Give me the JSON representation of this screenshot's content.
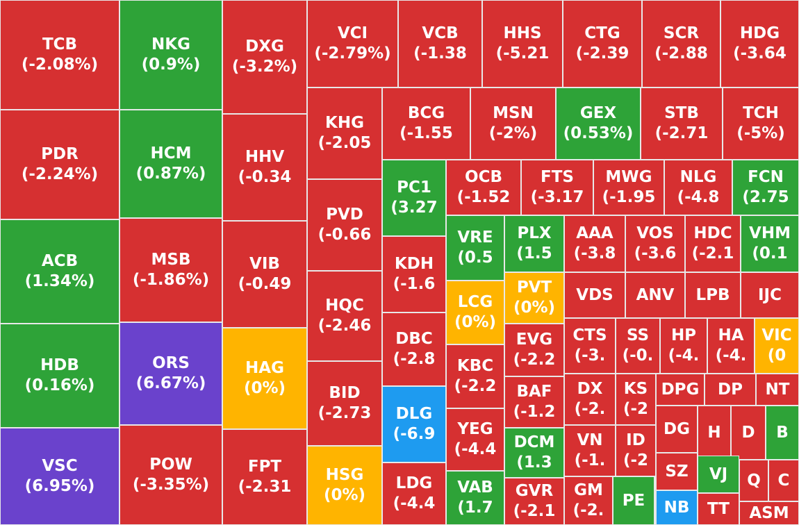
{
  "colors": {
    "down": "#d63031",
    "up": "#2ea338",
    "flat": "#ffb400",
    "ceiling": "#6a42cc",
    "floor": "#1e9bf0",
    "border": "#e8e8e8",
    "text": "#ffffff"
  },
  "chart_data": {
    "type": "treemap",
    "title": "",
    "cells": [
      {
        "ticker": "TCB",
        "change": "(-2.08%)",
        "state": "down"
      },
      {
        "ticker": "PDR",
        "change": "(-2.24%)",
        "state": "down"
      },
      {
        "ticker": "ACB",
        "change": "(1.34%)",
        "state": "up"
      },
      {
        "ticker": "HDB",
        "change": "(0.16%)",
        "state": "up"
      },
      {
        "ticker": "VSC",
        "change": "(6.95%)",
        "state": "ceiling"
      },
      {
        "ticker": "NKG",
        "change": "(0.9%)",
        "state": "up"
      },
      {
        "ticker": "HCM",
        "change": "(0.87%)",
        "state": "up"
      },
      {
        "ticker": "MSB",
        "change": "(-1.86%)",
        "state": "down"
      },
      {
        "ticker": "ORS",
        "change": "(6.67%)",
        "state": "ceiling"
      },
      {
        "ticker": "POW",
        "change": "(-3.35%)",
        "state": "down"
      },
      {
        "ticker": "DXG",
        "change": "(-3.2%)",
        "state": "down"
      },
      {
        "ticker": "HHV",
        "change": "(-0.34",
        "state": "down"
      },
      {
        "ticker": "VIB",
        "change": "(-0.49",
        "state": "down"
      },
      {
        "ticker": "HAG",
        "change": "(0%)",
        "state": "flat"
      },
      {
        "ticker": "FPT",
        "change": "(-2.31",
        "state": "down"
      },
      {
        "ticker": "VCI",
        "change": "(-2.79%)",
        "state": "down"
      },
      {
        "ticker": "VCB",
        "change": "(-1.38",
        "state": "down"
      },
      {
        "ticker": "HHS",
        "change": "(-5.21",
        "state": "down"
      },
      {
        "ticker": "CTG",
        "change": "(-2.39",
        "state": "down"
      },
      {
        "ticker": "SCR",
        "change": "(-2.88",
        "state": "down"
      },
      {
        "ticker": "HDG",
        "change": "(-3.64",
        "state": "down"
      },
      {
        "ticker": "KHG",
        "change": "(-2.05",
        "state": "down"
      },
      {
        "ticker": "PVD",
        "change": "(-0.66",
        "state": "down"
      },
      {
        "ticker": "HQC",
        "change": "(-2.46",
        "state": "down"
      },
      {
        "ticker": "BID",
        "change": "(-2.73",
        "state": "down"
      },
      {
        "ticker": "HSG",
        "change": "(0%)",
        "state": "flat"
      },
      {
        "ticker": "BCG",
        "change": "(-1.55",
        "state": "down"
      },
      {
        "ticker": "MSN",
        "change": "(-2%)",
        "state": "down"
      },
      {
        "ticker": "GEX",
        "change": "(0.53%)",
        "state": "up"
      },
      {
        "ticker": "STB",
        "change": "(-2.71",
        "state": "down"
      },
      {
        "ticker": "TCH",
        "change": "(-5%)",
        "state": "down"
      },
      {
        "ticker": "PC1",
        "change": "(3.27",
        "state": "up"
      },
      {
        "ticker": "KDH",
        "change": "(-1.6",
        "state": "down"
      },
      {
        "ticker": "DBC",
        "change": "(-2.8",
        "state": "down"
      },
      {
        "ticker": "DLG",
        "change": "(-6.9",
        "state": "floor"
      },
      {
        "ticker": "LDG",
        "change": "(-4.4",
        "state": "down"
      },
      {
        "ticker": "OCB",
        "change": "(-1.52",
        "state": "down"
      },
      {
        "ticker": "FTS",
        "change": "(-3.17",
        "state": "down"
      },
      {
        "ticker": "MWG",
        "change": "(-1.95",
        "state": "down"
      },
      {
        "ticker": "NLG",
        "change": "(-4.8",
        "state": "down"
      },
      {
        "ticker": "FCN",
        "change": "(2.75",
        "state": "up"
      },
      {
        "ticker": "VRE",
        "change": "(0.5",
        "state": "up"
      },
      {
        "ticker": "LCG",
        "change": "(0%)",
        "state": "flat"
      },
      {
        "ticker": "KBC",
        "change": "(-2.2",
        "state": "down"
      },
      {
        "ticker": "YEG",
        "change": "(-4.4",
        "state": "down"
      },
      {
        "ticker": "VAB",
        "change": "(1.7",
        "state": "up"
      },
      {
        "ticker": "PLX",
        "change": "(1.5",
        "state": "up"
      },
      {
        "ticker": "PVT",
        "change": "(0%)",
        "state": "flat"
      },
      {
        "ticker": "EVG",
        "change": "(-2.2",
        "state": "down"
      },
      {
        "ticker": "BAF",
        "change": "(-1.2",
        "state": "down"
      },
      {
        "ticker": "DCM",
        "change": "(1.3",
        "state": "up"
      },
      {
        "ticker": "GVR",
        "change": "(-2.1",
        "state": "down"
      },
      {
        "ticker": "AAA",
        "change": "(-3.8",
        "state": "down"
      },
      {
        "ticker": "VOS",
        "change": "(-3.6",
        "state": "down"
      },
      {
        "ticker": "HDC",
        "change": "(-2.1",
        "state": "down"
      },
      {
        "ticker": "VHM",
        "change": "(0.1",
        "state": "up"
      },
      {
        "ticker": "VDS",
        "change": "",
        "state": "down"
      },
      {
        "ticker": "ANV",
        "change": "",
        "state": "down"
      },
      {
        "ticker": "LPB",
        "change": "",
        "state": "down"
      },
      {
        "ticker": "IJC",
        "change": "",
        "state": "down"
      },
      {
        "ticker": "CTS",
        "change": "(-3.",
        "state": "down"
      },
      {
        "ticker": "SS",
        "change": "(-0.",
        "state": "down"
      },
      {
        "ticker": "HP",
        "change": "(-4.",
        "state": "down"
      },
      {
        "ticker": "HA",
        "change": "(-4.",
        "state": "down"
      },
      {
        "ticker": "VIC",
        "change": "(0",
        "state": "flat"
      },
      {
        "ticker": "DX",
        "change": "(-2.",
        "state": "down"
      },
      {
        "ticker": "KS",
        "change": "(-2",
        "state": "down"
      },
      {
        "ticker": "DPG",
        "change": "",
        "state": "down"
      },
      {
        "ticker": "DP",
        "change": "",
        "state": "down"
      },
      {
        "ticker": "NT",
        "change": "",
        "state": "down"
      },
      {
        "ticker": "VN",
        "change": "(-1.",
        "state": "down"
      },
      {
        "ticker": "ID",
        "change": "(-2",
        "state": "down"
      },
      {
        "ticker": "DG",
        "change": "",
        "state": "down"
      },
      {
        "ticker": "H",
        "change": "",
        "state": "down"
      },
      {
        "ticker": "D",
        "change": "",
        "state": "down"
      },
      {
        "ticker": "B",
        "change": "",
        "state": "up"
      },
      {
        "ticker": "GM",
        "change": "(-2.",
        "state": "down"
      },
      {
        "ticker": "PE",
        "change": "",
        "state": "up"
      },
      {
        "ticker": "SZ",
        "change": "",
        "state": "down"
      },
      {
        "ticker": "NB",
        "change": "",
        "state": "floor"
      },
      {
        "ticker": "VJ",
        "change": "",
        "state": "up"
      },
      {
        "ticker": "TT",
        "change": "",
        "state": "down"
      },
      {
        "ticker": "Q",
        "change": "",
        "state": "down"
      },
      {
        "ticker": "C",
        "change": "",
        "state": "down"
      },
      {
        "ticker": "ASM",
        "change": "",
        "state": "down"
      }
    ]
  }
}
